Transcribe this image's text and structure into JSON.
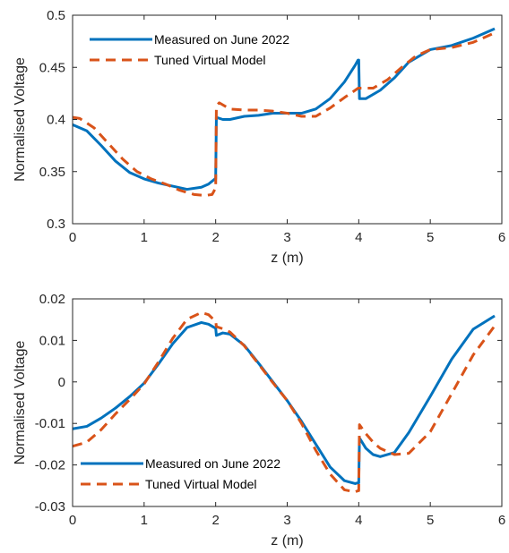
{
  "chart_data": [
    {
      "type": "line",
      "title": "",
      "xlabel": "z (m)",
      "ylabel": "Normalised Voltage",
      "xlim": [
        0,
        6
      ],
      "ylim": [
        0.3,
        0.5
      ],
      "xticks": [
        0,
        1,
        2,
        3,
        4,
        5,
        6
      ],
      "yticks": [
        0.3,
        0.35,
        0.4,
        0.45,
        0.5
      ],
      "xtick_labels": [
        "0",
        "1",
        "2",
        "3",
        "4",
        "5",
        "6"
      ],
      "ytick_labels": [
        "0.3",
        "0.35",
        "0.4",
        "0.45",
        "0.5"
      ],
      "legend_position": "top-left",
      "series": [
        {
          "name": "Measured on June 2022",
          "color": "#0072BD",
          "style": "solid",
          "x": [
            0,
            0.2,
            0.4,
            0.6,
            0.8,
            1.0,
            1.2,
            1.4,
            1.6,
            1.8,
            1.9,
            1.99,
            2.0,
            2.01,
            2.1,
            2.2,
            2.4,
            2.6,
            2.8,
            3.0,
            3.2,
            3.4,
            3.6,
            3.8,
            3.95,
            3.99,
            4.0,
            4.01,
            4.1,
            4.3,
            4.5,
            4.7,
            5.0,
            5.3,
            5.6,
            5.9
          ],
          "y": [
            0.395,
            0.389,
            0.375,
            0.36,
            0.349,
            0.343,
            0.339,
            0.336,
            0.333,
            0.335,
            0.338,
            0.343,
            0.343,
            0.402,
            0.4,
            0.4,
            0.403,
            0.404,
            0.406,
            0.406,
            0.406,
            0.41,
            0.42,
            0.436,
            0.452,
            0.457,
            0.457,
            0.42,
            0.42,
            0.428,
            0.44,
            0.455,
            0.467,
            0.471,
            0.478,
            0.487
          ]
        },
        {
          "name": "Tuned Virtual Model",
          "color": "#D95319",
          "style": "dashed",
          "x": [
            0,
            0.1,
            0.3,
            0.5,
            0.7,
            0.9,
            1.1,
            1.3,
            1.5,
            1.7,
            1.85,
            1.95,
            1.99,
            2.0,
            2.01,
            2.05,
            2.2,
            2.4,
            2.6,
            2.8,
            3.0,
            3.2,
            3.4,
            3.6,
            3.8,
            3.95,
            3.99,
            4.0,
            4.01,
            4.2,
            4.4,
            4.6,
            4.8,
            5.0,
            5.3,
            5.6,
            5.9
          ],
          "y": [
            0.402,
            0.401,
            0.392,
            0.377,
            0.362,
            0.35,
            0.343,
            0.338,
            0.332,
            0.328,
            0.327,
            0.328,
            0.333,
            0.333,
            0.413,
            0.416,
            0.41,
            0.409,
            0.409,
            0.408,
            0.406,
            0.403,
            0.403,
            0.411,
            0.421,
            0.428,
            0.43,
            0.43,
            0.43,
            0.43,
            0.438,
            0.45,
            0.461,
            0.467,
            0.469,
            0.474,
            0.483
          ]
        }
      ]
    },
    {
      "type": "line",
      "title": "",
      "xlabel": "z (m)",
      "ylabel": "Normalised Voltage",
      "xlim": [
        0,
        6
      ],
      "ylim": [
        -0.03,
        0.02
      ],
      "xticks": [
        0,
        1,
        2,
        3,
        4,
        5,
        6
      ],
      "yticks": [
        -0.03,
        -0.02,
        -0.01,
        0,
        0.01,
        0.02
      ],
      "xtick_labels": [
        "0",
        "1",
        "2",
        "3",
        "4",
        "5",
        "6"
      ],
      "ytick_labels": [
        "-0.03",
        "-0.02",
        "-0.01",
        "0",
        "0.01",
        "0.02"
      ],
      "legend_position": "bottom-left",
      "series": [
        {
          "name": "Measured on June 2022",
          "color": "#0072BD",
          "style": "solid",
          "x": [
            0,
            0.2,
            0.4,
            0.6,
            0.8,
            1.0,
            1.2,
            1.4,
            1.6,
            1.8,
            1.9,
            1.99,
            2.0,
            2.01,
            2.1,
            2.2,
            2.4,
            2.6,
            2.8,
            3.0,
            3.2,
            3.4,
            3.6,
            3.8,
            3.95,
            3.99,
            4.0,
            4.01,
            4.1,
            4.2,
            4.3,
            4.5,
            4.7,
            5.0,
            5.3,
            5.6,
            5.9
          ],
          "y": [
            -0.0113,
            -0.0107,
            -0.0087,
            -0.0063,
            -0.0035,
            -0.0003,
            0.0043,
            0.0092,
            0.0131,
            0.0143,
            0.0139,
            0.013,
            0.013,
            0.0112,
            0.0118,
            0.0115,
            0.0088,
            0.0045,
            0.0,
            -0.0045,
            -0.0095,
            -0.015,
            -0.0205,
            -0.0238,
            -0.0245,
            -0.0243,
            -0.0243,
            -0.0135,
            -0.016,
            -0.0175,
            -0.018,
            -0.017,
            -0.0122,
            -0.0035,
            0.0055,
            0.0127,
            0.0159
          ]
        },
        {
          "name": "Tuned Virtual Model",
          "color": "#D95319",
          "style": "dashed",
          "x": [
            0,
            0.2,
            0.4,
            0.6,
            0.8,
            1.0,
            1.2,
            1.4,
            1.6,
            1.8,
            1.9,
            1.99,
            2.0,
            2.01,
            2.1,
            2.2,
            2.4,
            2.6,
            2.8,
            3.0,
            3.2,
            3.4,
            3.6,
            3.8,
            3.95,
            3.99,
            4.0,
            4.01,
            4.1,
            4.2,
            4.3,
            4.5,
            4.7,
            5.0,
            5.3,
            5.6,
            5.9
          ],
          "y": [
            -0.0155,
            -0.0145,
            -0.0115,
            -0.0077,
            -0.0042,
            -0.0005,
            0.0048,
            0.0105,
            0.0151,
            0.0167,
            0.0162,
            0.0147,
            0.0147,
            0.0133,
            0.0128,
            0.012,
            0.0087,
            0.0043,
            -0.0002,
            -0.0045,
            -0.01,
            -0.0165,
            -0.0222,
            -0.026,
            -0.0265,
            -0.0262,
            -0.0262,
            -0.0103,
            -0.0125,
            -0.0145,
            -0.016,
            -0.0175,
            -0.0172,
            -0.012,
            -0.0028,
            0.0065,
            0.0135
          ]
        }
      ]
    }
  ]
}
